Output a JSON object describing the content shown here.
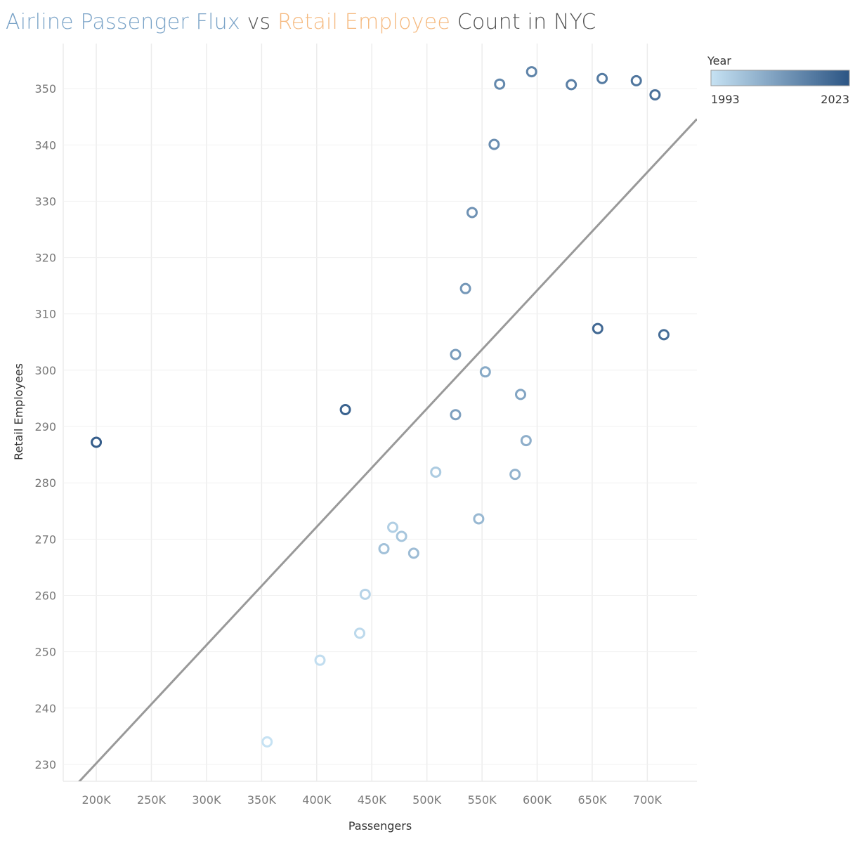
{
  "title": {
    "part1": "Airline Passenger Flux",
    "part2": " vs ",
    "part3": "Retail Employee",
    "part4": " Count in NYC",
    "color1": "#7aa3c7",
    "color2": "#555555",
    "color3": "#f5b97f",
    "color4": "#555555"
  },
  "chart_data": {
    "type": "scatter",
    "xlabel": "Passengers",
    "ylabel": "Retail Employees",
    "xlim": [
      170000,
      745000
    ],
    "ylim": [
      227,
      358
    ],
    "xticks": [
      200000,
      250000,
      300000,
      350000,
      400000,
      450000,
      500000,
      550000,
      600000,
      650000,
      700000
    ],
    "xtick_labels": [
      "200K",
      "250K",
      "300K",
      "350K",
      "400K",
      "450K",
      "500K",
      "550K",
      "600K",
      "650K",
      "700K"
    ],
    "yticks": [
      230,
      240,
      250,
      260,
      270,
      280,
      290,
      300,
      310,
      320,
      330,
      340,
      350
    ],
    "ytick_labels": [
      "230",
      "240",
      "250",
      "260",
      "270",
      "280",
      "290",
      "300",
      "310",
      "320",
      "330",
      "340",
      "350"
    ],
    "grid": true,
    "trendline": {
      "from": [
        170000,
        223.9
      ],
      "to": [
        745000,
        344.6
      ]
    },
    "color_scale": {
      "title": "Year",
      "min": 1993,
      "max": 2023,
      "min_label": "1993",
      "max_label": "2023",
      "low_color": "#c6e2f3",
      "high_color": "#2c5584"
    },
    "legend_position": "top-right",
    "points": [
      {
        "x": 355000,
        "y": 234.0,
        "year": 1993
      },
      {
        "x": 403000,
        "y": 248.5,
        "year": 1994
      },
      {
        "x": 439000,
        "y": 253.3,
        "year": 1995
      },
      {
        "x": 444000,
        "y": 260.2,
        "year": 1996
      },
      {
        "x": 469000,
        "y": 272.1,
        "year": 1997
      },
      {
        "x": 508000,
        "y": 281.9,
        "year": 1998
      },
      {
        "x": 477000,
        "y": 270.5,
        "year": 1999
      },
      {
        "x": 461000,
        "y": 268.3,
        "year": 2000
      },
      {
        "x": 488000,
        "y": 267.5,
        "year": 2001
      },
      {
        "x": 547000,
        "y": 273.6,
        "year": 2002
      },
      {
        "x": 580000,
        "y": 281.5,
        "year": 2003
      },
      {
        "x": 590000,
        "y": 287.5,
        "year": 2004
      },
      {
        "x": 553000,
        "y": 299.7,
        "year": 2005
      },
      {
        "x": 585000,
        "y": 295.7,
        "year": 2006
      },
      {
        "x": 526000,
        "y": 292.1,
        "year": 2007
      },
      {
        "x": 526000,
        "y": 302.8,
        "year": 2008
      },
      {
        "x": 535000,
        "y": 314.5,
        "year": 2009
      },
      {
        "x": 541000,
        "y": 328.0,
        "year": 2010
      },
      {
        "x": 561000,
        "y": 340.1,
        "year": 2011
      },
      {
        "x": 566000,
        "y": 350.8,
        "year": 2012
      },
      {
        "x": 595000,
        "y": 353.0,
        "year": 2013
      },
      {
        "x": 631000,
        "y": 350.7,
        "year": 2014
      },
      {
        "x": 659000,
        "y": 351.8,
        "year": 2015
      },
      {
        "x": 690000,
        "y": 351.4,
        "year": 2016
      },
      {
        "x": 707000,
        "y": 348.9,
        "year": 2017
      },
      {
        "x": 715000,
        "y": 306.3,
        "year": 2018
      },
      {
        "x": 655000,
        "y": 307.4,
        "year": 2019
      },
      {
        "x": 426000,
        "y": 293.0,
        "year": 2020
      },
      {
        "x": 200000,
        "y": 287.2,
        "year": 2021
      }
    ]
  }
}
